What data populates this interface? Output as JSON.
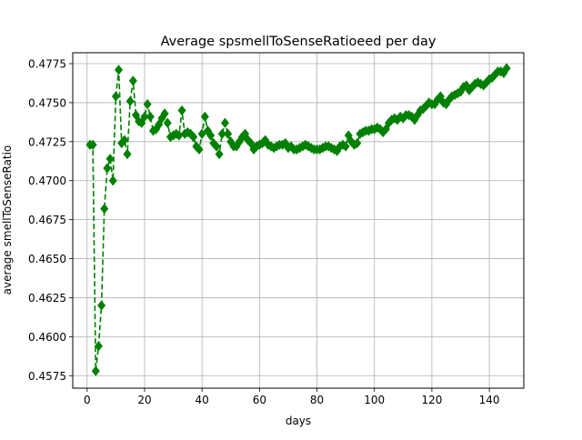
{
  "chart_data": {
    "type": "line",
    "title": "Average spsmellToSenseRatioeed per day",
    "xlabel": "days",
    "ylabel": "average smellToSenseRatio",
    "xlim": [
      -5,
      152
    ],
    "ylim": [
      0.4567,
      0.4782
    ],
    "xticks": [
      0,
      20,
      40,
      60,
      80,
      100,
      120,
      140
    ],
    "xtick_labels": [
      "0",
      "20",
      "40",
      "60",
      "80",
      "100",
      "120",
      "140"
    ],
    "yticks": [
      0.4575,
      0.46,
      0.4625,
      0.465,
      0.4675,
      0.47,
      0.4725,
      0.475,
      0.4775
    ],
    "ytick_labels": [
      "0.4575",
      "0.4600",
      "0.4625",
      "0.4650",
      "0.4675",
      "0.4700",
      "0.4725",
      "0.4750",
      "0.4775"
    ],
    "grid": true,
    "legend": "none",
    "series": [
      {
        "color": "#008000",
        "line_style": "dashed",
        "marker": "diamond",
        "x": [
          1,
          2,
          3,
          4,
          5,
          6,
          7,
          8,
          9,
          10,
          11,
          12,
          13,
          14,
          15,
          16,
          17,
          18,
          19,
          20,
          21,
          22,
          23,
          24,
          25,
          26,
          27,
          28,
          29,
          30,
          31,
          32,
          33,
          34,
          35,
          36,
          37,
          38,
          39,
          40,
          41,
          42,
          43,
          44,
          45,
          46,
          47,
          48,
          49,
          50,
          51,
          52,
          53,
          54,
          55,
          56,
          57,
          58,
          59,
          60,
          61,
          62,
          63,
          64,
          65,
          66,
          67,
          68,
          69,
          70,
          71,
          72,
          73,
          74,
          75,
          76,
          77,
          78,
          79,
          80,
          81,
          82,
          83,
          84,
          85,
          86,
          87,
          88,
          89,
          90,
          91,
          92,
          93,
          94,
          95,
          96,
          97,
          98,
          99,
          100,
          101,
          102,
          103,
          104,
          105,
          106,
          107,
          108,
          109,
          110,
          111,
          112,
          113,
          114,
          115,
          116,
          117,
          118,
          119,
          120,
          121,
          122,
          123,
          124,
          125,
          126,
          127,
          128,
          129,
          130,
          131,
          132,
          133,
          134,
          135,
          136,
          137,
          138,
          139,
          140,
          141,
          142,
          143,
          144,
          145,
          146
        ],
        "y": [
          0.4723,
          0.4723,
          0.4578,
          0.4594,
          0.462,
          0.4682,
          0.4708,
          0.4714,
          0.47,
          0.4754,
          0.4771,
          0.4724,
          0.4726,
          0.4717,
          0.4751,
          0.4764,
          0.4742,
          0.4738,
          0.4737,
          0.4741,
          0.4749,
          0.4741,
          0.4732,
          0.4733,
          0.4736,
          0.474,
          0.4743,
          0.4737,
          0.4728,
          0.4729,
          0.473,
          0.4729,
          0.4745,
          0.473,
          0.4731,
          0.473,
          0.4728,
          0.4722,
          0.472,
          0.473,
          0.4741,
          0.4732,
          0.4729,
          0.4724,
          0.4722,
          0.4717,
          0.473,
          0.4737,
          0.473,
          0.4725,
          0.4722,
          0.4722,
          0.4725,
          0.4728,
          0.473,
          0.4726,
          0.4724,
          0.472,
          0.4722,
          0.4723,
          0.4724,
          0.4726,
          0.4723,
          0.4722,
          0.4721,
          0.4722,
          0.4723,
          0.4723,
          0.4724,
          0.4721,
          0.4722,
          0.472,
          0.472,
          0.4721,
          0.4722,
          0.4723,
          0.4722,
          0.4721,
          0.472,
          0.472,
          0.472,
          0.4721,
          0.4722,
          0.4722,
          0.4721,
          0.472,
          0.4719,
          0.4722,
          0.4723,
          0.4722,
          0.4729,
          0.4725,
          0.4723,
          0.4724,
          0.473,
          0.4731,
          0.4732,
          0.4732,
          0.4733,
          0.4733,
          0.4734,
          0.4733,
          0.4731,
          0.4733,
          0.4737,
          0.4739,
          0.474,
          0.4739,
          0.4741,
          0.474,
          0.4742,
          0.4742,
          0.4741,
          0.4739,
          0.4742,
          0.4745,
          0.4746,
          0.4748,
          0.475,
          0.4749,
          0.4749,
          0.4752,
          0.4754,
          0.475,
          0.4749,
          0.4752,
          0.4754,
          0.4755,
          0.4756,
          0.4757,
          0.476,
          0.4761,
          0.4758,
          0.476,
          0.4762,
          0.4763,
          0.4762,
          0.4761,
          0.4763,
          0.4765,
          0.4766,
          0.4768,
          0.477,
          0.477,
          0.4769,
          0.4772
        ]
      }
    ]
  }
}
